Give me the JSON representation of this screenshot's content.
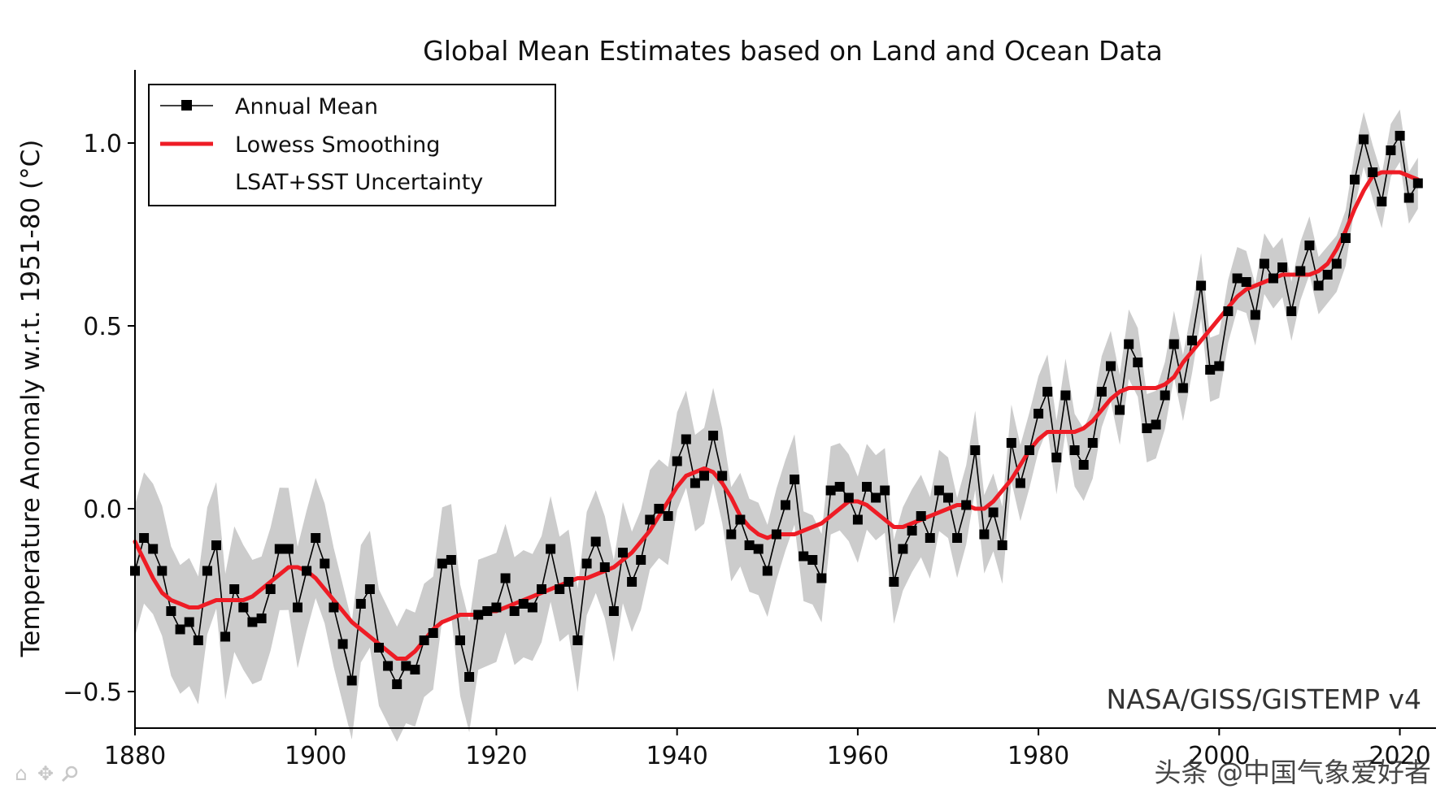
{
  "chart_data": {
    "type": "line",
    "title": "Global Mean Estimates based on Land and Ocean Data",
    "xlabel": "",
    "ylabel": "Temperature Anomaly w.r.t. 1951-80 (°C)",
    "xlim": [
      1880,
      2024
    ],
    "ylim": [
      -0.6,
      1.2
    ],
    "xticks": [
      "1880",
      "1900",
      "1920",
      "1940",
      "1960",
      "1980",
      "2000",
      "2020"
    ],
    "yticks": [
      "−0.5",
      "0.0",
      "0.5",
      "1.0"
    ],
    "legend_position": "top-left",
    "legend": [
      "Annual Mean",
      "Lowess Smoothing",
      "LSAT+SST Uncertainty"
    ],
    "credit": "NASA/GISS/GISTEMP v4",
    "watermark": "头条 @中国气象爱好者",
    "x": [
      1880,
      1881,
      1882,
      1883,
      1884,
      1885,
      1886,
      1887,
      1888,
      1889,
      1890,
      1891,
      1892,
      1893,
      1894,
      1895,
      1896,
      1897,
      1898,
      1899,
      1900,
      1901,
      1902,
      1903,
      1904,
      1905,
      1906,
      1907,
      1908,
      1909,
      1910,
      1911,
      1912,
      1913,
      1914,
      1915,
      1916,
      1917,
      1918,
      1919,
      1920,
      1921,
      1922,
      1923,
      1924,
      1925,
      1926,
      1927,
      1928,
      1929,
      1930,
      1931,
      1932,
      1933,
      1934,
      1935,
      1936,
      1937,
      1938,
      1939,
      1940,
      1941,
      1942,
      1943,
      1944,
      1945,
      1946,
      1947,
      1948,
      1949,
      1950,
      1951,
      1952,
      1953,
      1954,
      1955,
      1956,
      1957,
      1958,
      1959,
      1960,
      1961,
      1962,
      1963,
      1964,
      1965,
      1966,
      1967,
      1968,
      1969,
      1970,
      1971,
      1972,
      1973,
      1974,
      1975,
      1976,
      1977,
      1978,
      1979,
      1980,
      1981,
      1982,
      1983,
      1984,
      1985,
      1986,
      1987,
      1988,
      1989,
      1990,
      1991,
      1992,
      1993,
      1994,
      1995,
      1996,
      1997,
      1998,
      1999,
      2000,
      2001,
      2002,
      2003,
      2004,
      2005,
      2006,
      2007,
      2008,
      2009,
      2010,
      2011,
      2012,
      2013,
      2014,
      2015,
      2016,
      2017,
      2018,
      2019,
      2020,
      2021,
      2022
    ],
    "series": [
      {
        "name": "Annual Mean",
        "color": "#000000",
        "values": [
          -0.17,
          -0.08,
          -0.11,
          -0.17,
          -0.28,
          -0.33,
          -0.31,
          -0.36,
          -0.17,
          -0.1,
          -0.35,
          -0.22,
          -0.27,
          -0.31,
          -0.3,
          -0.22,
          -0.11,
          -0.11,
          -0.27,
          -0.17,
          -0.08,
          -0.15,
          -0.27,
          -0.37,
          -0.47,
          -0.26,
          -0.22,
          -0.38,
          -0.43,
          -0.48,
          -0.43,
          -0.44,
          -0.36,
          -0.34,
          -0.15,
          -0.14,
          -0.36,
          -0.46,
          -0.29,
          -0.28,
          -0.27,
          -0.19,
          -0.28,
          -0.26,
          -0.27,
          -0.22,
          -0.11,
          -0.22,
          -0.2,
          -0.36,
          -0.15,
          -0.09,
          -0.16,
          -0.28,
          -0.12,
          -0.2,
          -0.14,
          -0.03,
          0.0,
          -0.02,
          0.13,
          0.19,
          0.07,
          0.09,
          0.2,
          0.09,
          -0.07,
          -0.03,
          -0.1,
          -0.11,
          -0.17,
          -0.07,
          0.01,
          0.08,
          -0.13,
          -0.14,
          -0.19,
          0.05,
          0.06,
          0.03,
          -0.03,
          0.06,
          0.03,
          0.05,
          -0.2,
          -0.11,
          -0.06,
          -0.02,
          -0.08,
          0.05,
          0.03,
          -0.08,
          0.01,
          0.16,
          -0.07,
          -0.01,
          -0.1,
          0.18,
          0.07,
          0.16,
          0.26,
          0.32,
          0.14,
          0.31,
          0.16,
          0.12,
          0.18,
          0.32,
          0.39,
          0.27,
          0.45,
          0.4,
          0.22,
          0.23,
          0.31,
          0.45,
          0.33,
          0.46,
          0.61,
          0.38,
          0.39,
          0.54,
          0.63,
          0.62,
          0.53,
          0.67,
          0.63,
          0.66,
          0.54,
          0.65,
          0.72,
          0.61,
          0.64,
          0.67,
          0.74,
          0.9,
          1.01,
          0.92,
          0.84,
          0.98,
          1.02,
          0.85,
          0.89
        ]
      },
      {
        "name": "Lowess Smoothing",
        "color": "#ee1c25",
        "values": [
          -0.09,
          -0.14,
          -0.19,
          -0.23,
          -0.25,
          -0.26,
          -0.27,
          -0.27,
          -0.26,
          -0.25,
          -0.25,
          -0.25,
          -0.25,
          -0.24,
          -0.22,
          -0.2,
          -0.18,
          -0.16,
          -0.16,
          -0.17,
          -0.19,
          -0.22,
          -0.25,
          -0.28,
          -0.31,
          -0.33,
          -0.35,
          -0.37,
          -0.39,
          -0.41,
          -0.41,
          -0.39,
          -0.36,
          -0.33,
          -0.31,
          -0.3,
          -0.29,
          -0.29,
          -0.29,
          -0.28,
          -0.28,
          -0.27,
          -0.26,
          -0.25,
          -0.24,
          -0.23,
          -0.22,
          -0.21,
          -0.2,
          -0.19,
          -0.19,
          -0.18,
          -0.17,
          -0.16,
          -0.14,
          -0.12,
          -0.09,
          -0.06,
          -0.02,
          0.02,
          0.06,
          0.09,
          0.1,
          0.11,
          0.1,
          0.07,
          0.03,
          -0.02,
          -0.05,
          -0.07,
          -0.08,
          -0.07,
          -0.07,
          -0.07,
          -0.06,
          -0.05,
          -0.04,
          -0.02,
          0.0,
          0.02,
          0.02,
          0.01,
          -0.01,
          -0.03,
          -0.05,
          -0.05,
          -0.04,
          -0.03,
          -0.02,
          -0.01,
          0.0,
          0.01,
          0.01,
          0.0,
          0.0,
          0.02,
          0.05,
          0.08,
          0.12,
          0.16,
          0.19,
          0.21,
          0.21,
          0.21,
          0.21,
          0.22,
          0.24,
          0.27,
          0.3,
          0.32,
          0.33,
          0.33,
          0.33,
          0.33,
          0.34,
          0.36,
          0.4,
          0.43,
          0.46,
          0.49,
          0.52,
          0.55,
          0.58,
          0.6,
          0.61,
          0.62,
          0.63,
          0.64,
          0.64,
          0.64,
          0.64,
          0.65,
          0.67,
          0.71,
          0.76,
          0.82,
          0.87,
          0.91,
          0.92,
          0.92,
          0.92,
          0.91,
          0.9
        ]
      }
    ],
    "uncertainty": {
      "name": "LSAT+SST Uncertainty",
      "color": "#cccccc",
      "half_width_start": 0.18,
      "half_width_end": 0.07
    }
  }
}
